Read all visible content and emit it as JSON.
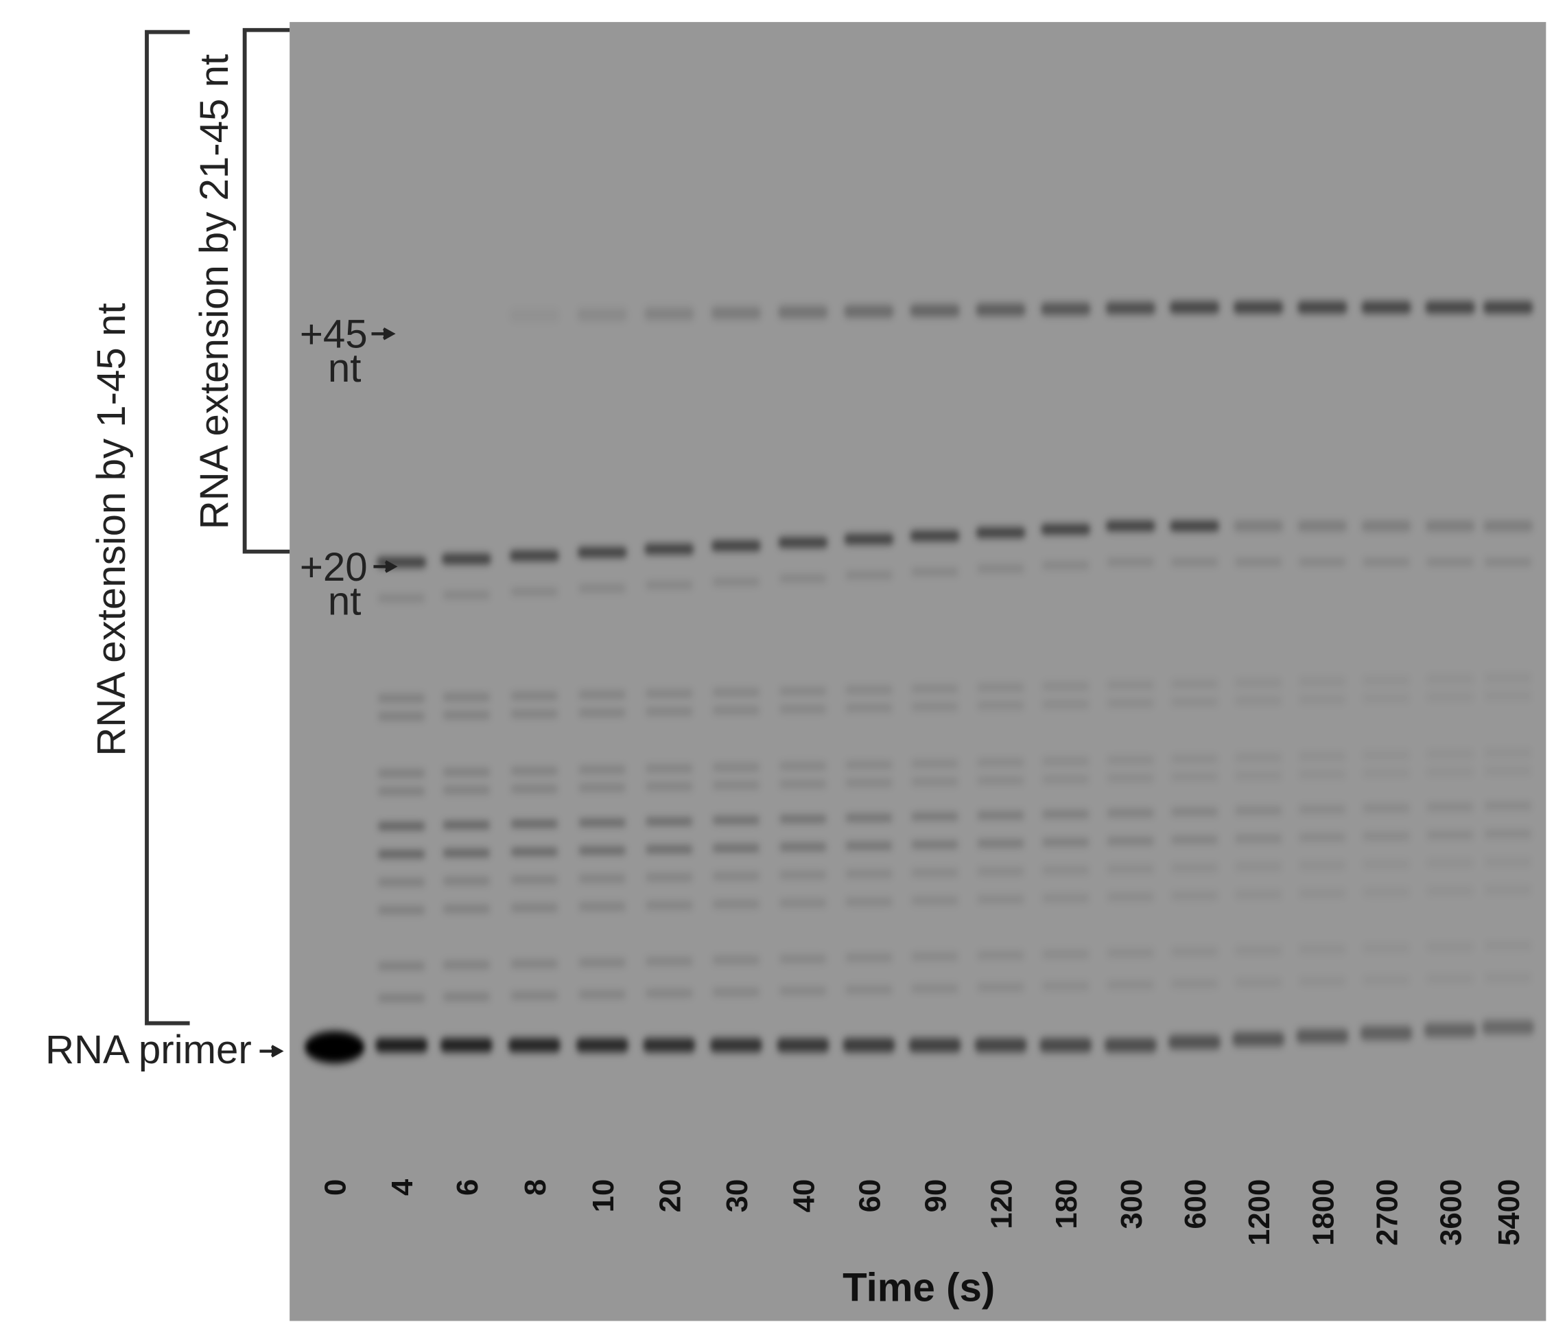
{
  "labels": {
    "left_bracket": "RNA extension by 1-45 nt",
    "right_bracket": "RNA extension by 21-45 nt",
    "plus45": "+45",
    "plus45_unit": "nt",
    "plus20": "+20",
    "plus20_unit": "nt",
    "primer": "RNA primer"
  },
  "lanes": [
    0,
    4,
    6,
    8,
    10,
    20,
    30,
    40,
    60,
    90,
    120,
    180,
    300,
    600,
    1200,
    1800,
    2700,
    3600,
    5400
  ],
  "x_axis_title": "Time (s)"
}
